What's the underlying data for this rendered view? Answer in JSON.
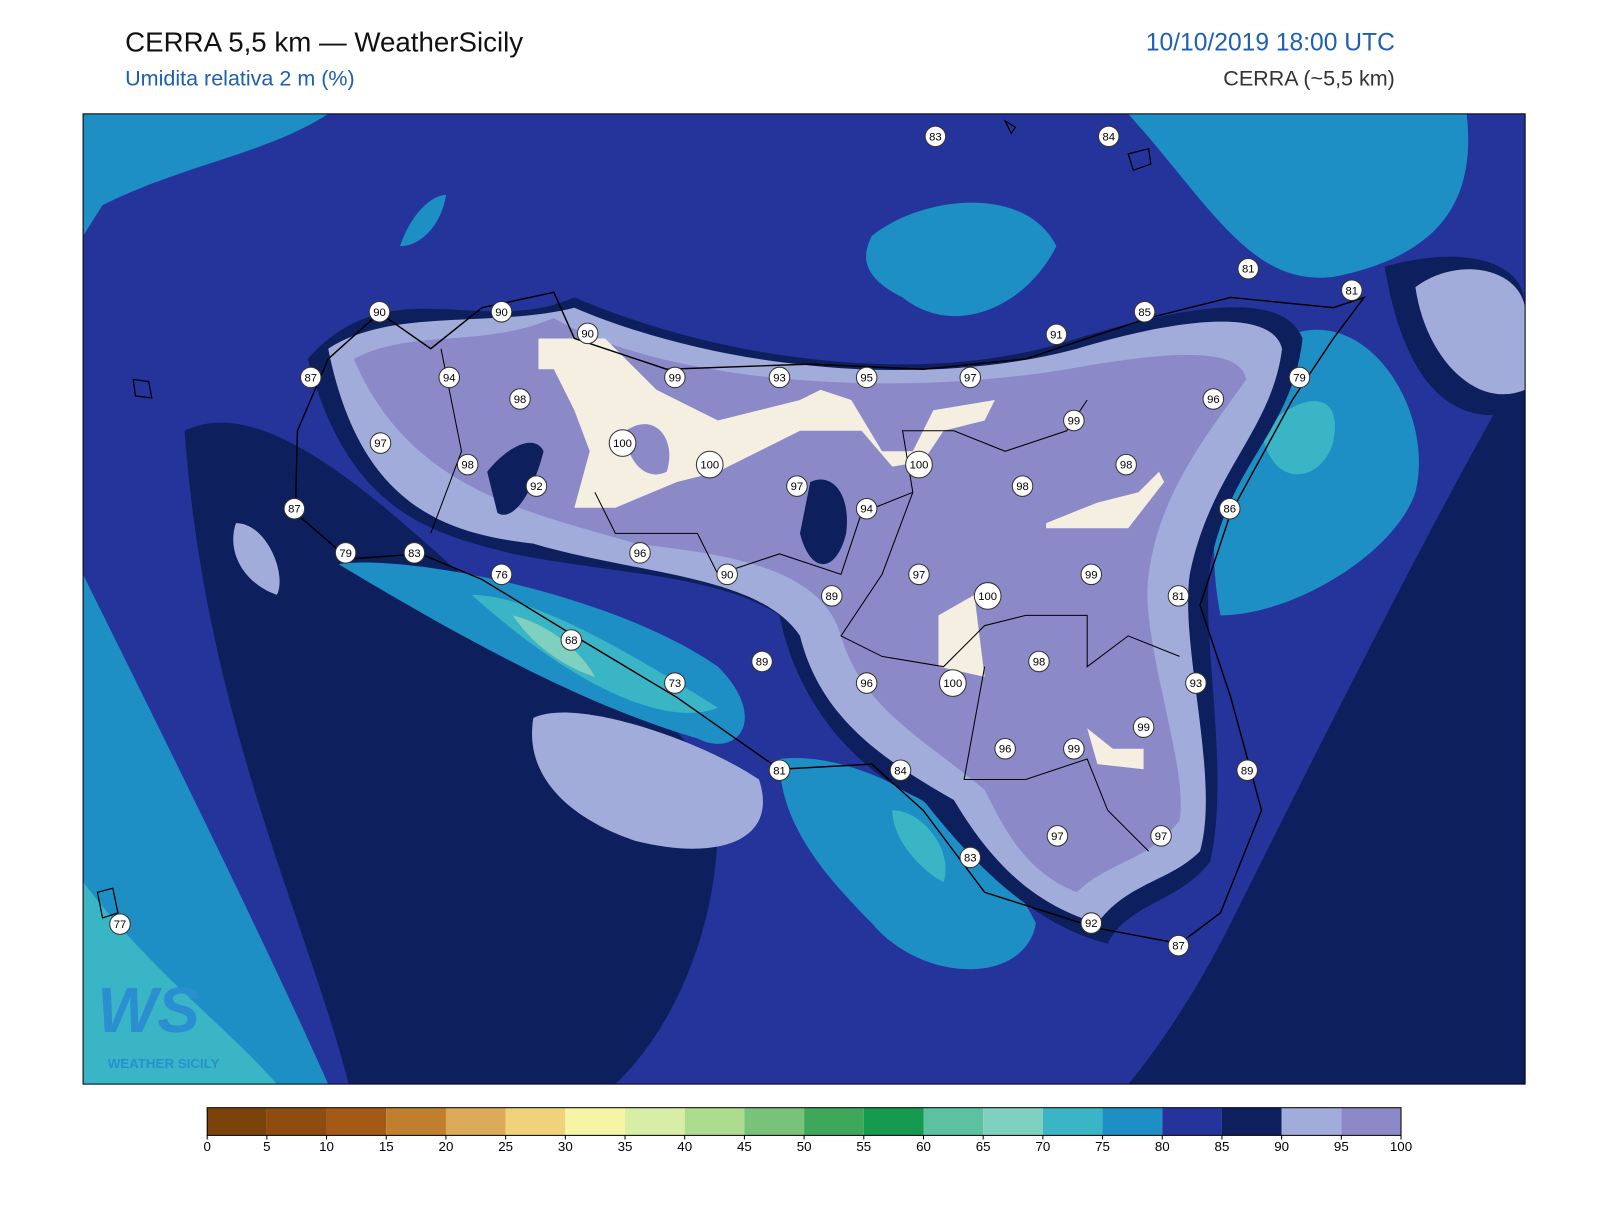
{
  "header": {
    "title": "CERRA 5,5 km — WeatherSicily",
    "subtitle": "Umidita relativa 2 m (%)",
    "datetime": "10/10/2019 18:00 UTC",
    "model": "CERRA (~5,5 km)"
  },
  "logo": {
    "letters": "WS",
    "name": "WEATHER SICILY"
  },
  "stations": [
    83,
    84,
    81,
    81,
    90,
    90,
    90,
    85,
    91,
    87,
    94,
    99,
    93,
    95,
    97,
    79,
    96,
    98,
    99,
    97,
    100,
    100,
    100,
    98,
    98,
    92,
    97,
    98,
    87,
    94,
    86,
    79,
    83,
    96,
    76,
    90,
    97,
    99,
    100,
    89,
    81,
    68,
    89,
    98,
    73,
    96,
    100,
    93,
    99,
    96,
    99,
    81,
    84,
    89,
    97,
    97,
    83,
    92,
    87,
    77
  ],
  "colorbar": {
    "ticks": [
      0,
      5,
      10,
      15,
      20,
      25,
      30,
      35,
      40,
      45,
      50,
      55,
      60,
      65,
      70,
      75,
      80,
      85,
      90,
      95,
      100
    ],
    "colors": [
      "#7b4209",
      "#8e4c10",
      "#a35a17",
      "#bf7f2e",
      "#dcab5a",
      "#f0d27a",
      "#f5f5a5",
      "#d8eea6",
      "#aedc8f",
      "#78c379",
      "#3ea75a",
      "#169a50",
      "#5cc1a0",
      "#7fd0bf",
      "#3ab5c6",
      "#1e8fc4",
      "#25349a",
      "#0d1f5c",
      "#a2acdb",
      "#8b89c8"
    ]
  }
}
